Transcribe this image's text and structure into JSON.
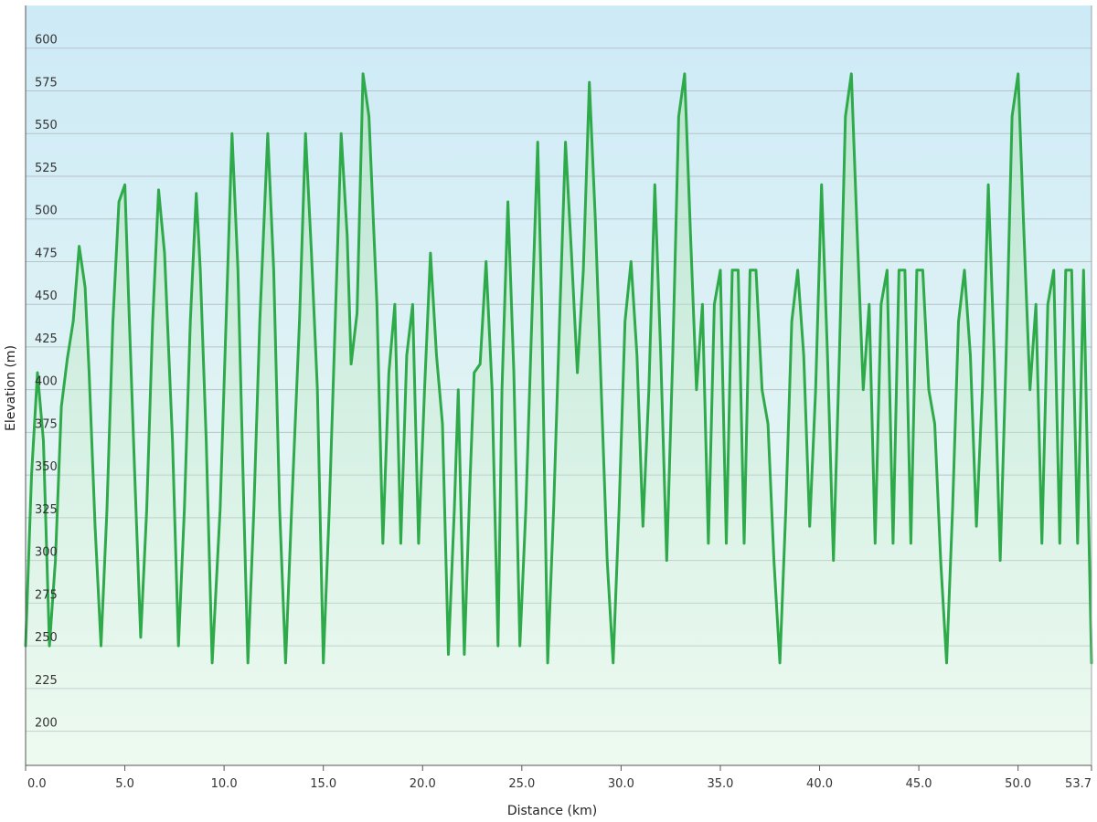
{
  "chart_data": {
    "type": "area",
    "xlabel": "Distance  (km)",
    "ylabel": "Elevation (m)",
    "xlim": [
      0,
      53.7
    ],
    "ylim": [
      180,
      625
    ],
    "x_ticks": [
      0,
      5,
      10,
      15,
      20,
      25,
      30,
      35,
      40,
      45,
      50,
      53.7
    ],
    "x_tick_labels": [
      "0.0",
      "5.0",
      "10.0",
      "15.0",
      "20.0",
      "25.0",
      "30.0",
      "35.0",
      "40.0",
      "45.0",
      "50.0",
      "53.7"
    ],
    "y_ticks": [
      200,
      225,
      250,
      275,
      300,
      325,
      350,
      375,
      400,
      425,
      450,
      475,
      500,
      525,
      550,
      575,
      600
    ],
    "grid": true,
    "colors": {
      "line": "#2eaa4a",
      "fill": "#a8e0b0",
      "background_top": "#cdeaf7",
      "background_bottom": "#f1fbf2",
      "grid": "#b8c3c8",
      "axis": "#555555"
    },
    "series": [
      {
        "x": [
          0.0,
          0.3,
          0.6,
          0.9,
          1.2,
          1.5,
          1.8,
          2.1,
          2.4,
          2.7,
          3.0,
          3.2,
          3.5,
          3.8,
          4.1,
          4.4,
          4.7,
          5.0,
          5.2,
          5.5,
          5.8,
          6.1,
          6.4,
          6.7,
          7.0,
          7.4,
          7.7,
          8.0,
          8.3,
          8.6,
          8.8,
          9.1,
          9.4,
          9.8,
          10.1,
          10.4,
          10.7,
          11.0,
          11.2,
          11.5,
          11.8,
          12.2,
          12.5,
          12.8,
          13.1,
          13.4,
          13.8,
          14.1,
          14.4,
          14.7,
          15.0,
          15.3,
          15.6,
          15.9,
          16.2,
          16.4,
          16.7,
          17.0,
          17.3,
          17.7,
          18.0,
          18.3,
          18.6,
          18.9,
          19.2,
          19.5,
          19.8,
          20.1,
          20.4,
          20.7,
          21.0,
          21.3,
          21.6,
          21.8,
          22.1,
          22.4,
          22.6,
          22.9,
          23.2,
          23.5,
          23.8,
          24.0,
          24.3,
          24.6,
          24.9,
          25.2,
          25.5,
          25.8,
          26.0,
          26.3,
          26.6,
          26.9,
          27.2,
          27.5,
          27.8,
          28.1,
          28.4,
          28.7,
          29.0,
          29.3,
          29.6,
          29.9,
          30.2,
          30.5,
          30.8,
          31.1,
          31.4,
          31.7,
          32.0,
          32.3,
          32.6,
          32.9,
          33.2,
          33.5,
          33.8,
          34.1,
          34.4,
          34.7,
          35.0,
          35.3,
          35.6,
          35.9,
          36.2,
          36.5,
          36.8,
          37.1,
          37.4,
          37.7,
          38.0,
          38.3,
          38.6,
          38.9,
          39.2,
          39.5,
          39.8,
          40.1,
          40.4,
          40.7,
          41.0,
          41.3,
          41.6,
          41.9,
          42.2,
          42.5,
          42.8,
          43.1,
          43.4,
          43.7,
          44.0,
          44.3,
          44.6,
          44.9,
          45.2,
          45.5,
          45.8,
          46.1,
          46.4,
          46.7,
          47.0,
          47.3,
          47.6,
          47.9,
          48.2,
          48.5,
          48.8,
          49.1,
          49.4,
          49.7,
          50.0,
          50.3,
          50.6,
          50.9,
          51.2,
          51.5,
          51.8,
          52.1,
          52.4,
          52.7,
          53.0,
          53.3,
          53.7
        ],
        "y": [
          250,
          350,
          410,
          370,
          250,
          300,
          390,
          418,
          440,
          484,
          460,
          410,
          320,
          250,
          330,
          440,
          510,
          520,
          450,
          350,
          255,
          330,
          440,
          517,
          480,
          370,
          250,
          330,
          440,
          515,
          470,
          370,
          240,
          330,
          440,
          550,
          470,
          330,
          240,
          330,
          440,
          550,
          470,
          330,
          240,
          330,
          440,
          550,
          480,
          400,
          240,
          330,
          440,
          550,
          490,
          415,
          445,
          585,
          560,
          450,
          310,
          410,
          450,
          310,
          420,
          450,
          310,
          400,
          480,
          420,
          380,
          245,
          330,
          400,
          245,
          350,
          410,
          415,
          475,
          400,
          250,
          400,
          510,
          410,
          250,
          330,
          440,
          545,
          450,
          240,
          330,
          440,
          545,
          480,
          410,
          470,
          580,
          500,
          400,
          300,
          240,
          330,
          440,
          475,
          420,
          320,
          400,
          520,
          420,
          300,
          420,
          560,
          585,
          490,
          400,
          450,
          310,
          450,
          470,
          310,
          470,
          470,
          310,
          470,
          470,
          400,
          380,
          300,
          240,
          330,
          440,
          470,
          420,
          320,
          400,
          520,
          420,
          300,
          420,
          560,
          585,
          490,
          400,
          450,
          310,
          450,
          470,
          310,
          470,
          470,
          310,
          470,
          470,
          400,
          380,
          300,
          240,
          330,
          440,
          470,
          420,
          320,
          400,
          520,
          420,
          300,
          420,
          560,
          585,
          490,
          400,
          450,
          310,
          450,
          470,
          310,
          470,
          470,
          310,
          470,
          240
        ]
      }
    ]
  }
}
